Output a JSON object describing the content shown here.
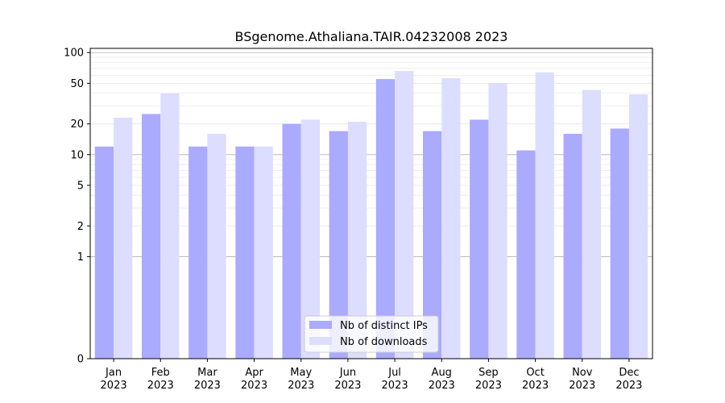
{
  "chart_data": {
    "type": "bar",
    "title": "BSgenome.Athaliana.TAIR.04232008 2023",
    "xlabel": "",
    "ylabel": "",
    "y_scale": "symlog",
    "ylim": [
      0,
      110
    ],
    "y_ticks": [
      0,
      1,
      2,
      5,
      10,
      20,
      50,
      100
    ],
    "y_tick_labels": [
      "0",
      "1",
      "2",
      "5",
      "10",
      "20",
      "50",
      "100"
    ],
    "grid": true,
    "legend_position": "bottom-center",
    "categories": [
      {
        "month": "Jan",
        "year": "2023"
      },
      {
        "month": "Feb",
        "year": "2023"
      },
      {
        "month": "Mar",
        "year": "2023"
      },
      {
        "month": "Apr",
        "year": "2023"
      },
      {
        "month": "May",
        "year": "2023"
      },
      {
        "month": "Jun",
        "year": "2023"
      },
      {
        "month": "Jul",
        "year": "2023"
      },
      {
        "month": "Aug",
        "year": "2023"
      },
      {
        "month": "Sep",
        "year": "2023"
      },
      {
        "month": "Oct",
        "year": "2023"
      },
      {
        "month": "Nov",
        "year": "2023"
      },
      {
        "month": "Dec",
        "year": "2023"
      }
    ],
    "series": [
      {
        "name": "Nb of distinct IPs",
        "color": "#aaaaff",
        "values": [
          12,
          25,
          12,
          12,
          20,
          17,
          55,
          17,
          22,
          11,
          16,
          18
        ]
      },
      {
        "name": "Nb of downloads",
        "color": "#ddddff",
        "values": [
          23,
          40,
          16,
          12,
          22,
          21,
          66,
          56,
          50,
          64,
          43,
          39
        ]
      }
    ]
  }
}
